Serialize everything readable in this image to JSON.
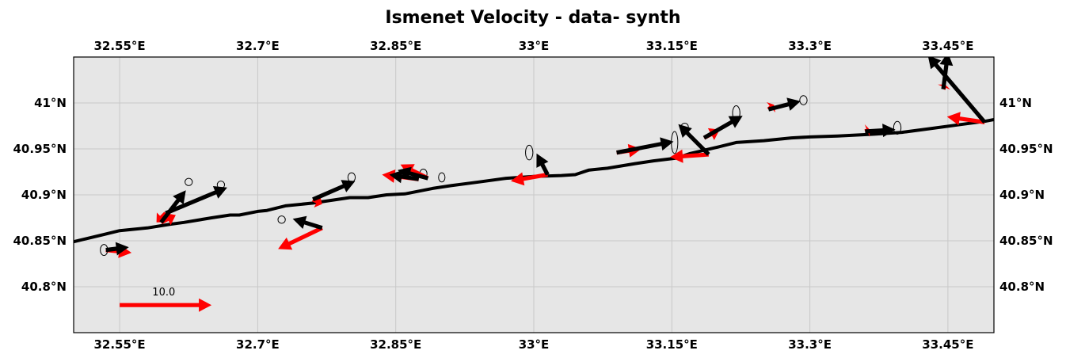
{
  "title": "Ismenet Velocity - data- synth",
  "map": {
    "lon_range": [
      32.5,
      33.5
    ],
    "lat_range": [
      40.75,
      41.05
    ],
    "background": "#e6e6e6",
    "grid": true,
    "lon_ticks": [
      32.55,
      32.7,
      32.85,
      33.0,
      33.15,
      33.3,
      33.45
    ],
    "lon_tick_labels": [
      "32.55°E",
      "32.7°E",
      "32.85°E",
      "33°E",
      "33.15°E",
      "33.3°E",
      "33.45°E"
    ],
    "lat_ticks": [
      40.8,
      40.85,
      40.9,
      40.95,
      41.0
    ],
    "lat_tick_labels": [
      "40.8°N",
      "40.85°N",
      "40.9°N",
      "40.95°N",
      "41°N"
    ]
  },
  "colors": {
    "data": "#000000",
    "synth": "#ff0000",
    "track": "#000000"
  },
  "track": [
    [
      32.5,
      40.849
    ],
    [
      32.55,
      40.861
    ],
    [
      32.58,
      40.864
    ],
    [
      32.605,
      40.868
    ],
    [
      32.62,
      40.87
    ],
    [
      32.65,
      40.875
    ],
    [
      32.67,
      40.878
    ],
    [
      32.68,
      40.878
    ],
    [
      32.7,
      40.882
    ],
    [
      32.71,
      40.883
    ],
    [
      32.73,
      40.888
    ],
    [
      32.76,
      40.891
    ],
    [
      32.8,
      40.897
    ],
    [
      32.82,
      40.897
    ],
    [
      32.84,
      40.9
    ],
    [
      32.86,
      40.901
    ],
    [
      32.89,
      40.907
    ],
    [
      32.91,
      40.91
    ],
    [
      32.94,
      40.914
    ],
    [
      32.97,
      40.918
    ],
    [
      33.0,
      40.92
    ],
    [
      33.03,
      40.921
    ],
    [
      33.045,
      40.922
    ],
    [
      33.06,
      40.927
    ],
    [
      33.08,
      40.929
    ],
    [
      33.11,
      40.934
    ],
    [
      33.13,
      40.937
    ],
    [
      33.155,
      40.94
    ],
    [
      33.17,
      40.945
    ],
    [
      33.2,
      40.952
    ],
    [
      33.22,
      40.957
    ],
    [
      33.25,
      40.959
    ],
    [
      33.28,
      40.962
    ],
    [
      33.3,
      40.963
    ],
    [
      33.33,
      40.964
    ],
    [
      33.37,
      40.966
    ],
    [
      33.4,
      40.968
    ],
    [
      33.43,
      40.972
    ],
    [
      33.46,
      40.976
    ],
    [
      33.49,
      40.98
    ],
    [
      33.5,
      40.982
    ]
  ],
  "chart_data": {
    "type": "quiver",
    "title": "Ismenet Velocity - data- synth",
    "reference_vector": {
      "lon": 32.55,
      "lat": 40.78,
      "u": 10.0,
      "v": 0.0,
      "label": "10.0"
    },
    "vectors": [
      {
        "lon": 32.535,
        "lat": 40.84,
        "data": [
          2.5,
          0.3
        ],
        "synth": [
          2.8,
          -0.3
        ]
      },
      {
        "lon": 32.595,
        "lat": 40.87,
        "data": [
          2.7,
          3.5
        ],
        "synth": [
          1.6,
          0.8
        ]
      },
      {
        "lon": 32.6,
        "lat": 40.88,
        "data": [
          6.7,
          2.8
        ],
        "synth": [
          -1.0,
          -1.0
        ]
      },
      {
        "lon": 32.76,
        "lat": 40.895,
        "data": [
          4.6,
          2.0
        ],
        "synth": [
          1.0,
          -0.5
        ]
      },
      {
        "lon": 32.77,
        "lat": 40.864,
        "data": [
          -3.2,
          1.0
        ],
        "synth": [
          -4.8,
          -2.3
        ]
      },
      {
        "lon": 32.885,
        "lat": 40.918,
        "data": [
          -3.3,
          0.9
        ],
        "synth": [
          -3.0,
          1.5
        ]
      },
      {
        "lon": 32.875,
        "lat": 40.917,
        "data": [
          -3.2,
          0.5
        ],
        "synth": [
          -4.0,
          0.5
        ]
      },
      {
        "lon": 33.015,
        "lat": 40.922,
        "data": [
          -1.2,
          2.3
        ],
        "synth": [
          -4.0,
          -0.7
        ]
      },
      {
        "lon": 33.09,
        "lat": 40.946,
        "data": [
          6.2,
          1.2
        ],
        "synth": [
          2.7,
          0.4
        ]
      },
      {
        "lon": 33.19,
        "lat": 40.944,
        "data": [
          -3.3,
          3.3
        ],
        "synth": [
          -4.2,
          -0.3
        ]
      },
      {
        "lon": 33.185,
        "lat": 40.962,
        "data": [
          4.2,
          2.4
        ],
        "synth": [
          1.7,
          0.9
        ]
      },
      {
        "lon": 33.255,
        "lat": 40.993,
        "data": [
          3.5,
          0.9
        ],
        "synth": [
          0.6,
          0.5
        ]
      },
      {
        "lon": 33.36,
        "lat": 40.969,
        "data": [
          3.3,
          0.2
        ],
        "synth": [
          0.5,
          0.2
        ]
      },
      {
        "lon": 33.445,
        "lat": 41.015,
        "data": [
          0.5,
          4.0
        ],
        "synth": [
          0.2,
          0.5
        ]
      },
      {
        "lon": 33.49,
        "lat": 40.979,
        "data": [
          -6.2,
          7.3
        ],
        "synth": [
          -4.1,
          0.6
        ]
      }
    ],
    "ellipses": [
      {
        "lon": 32.533,
        "lat": 40.84,
        "w": 0.008,
        "h": 0.012
      },
      {
        "lon": 32.625,
        "lat": 40.914,
        "w": 0.008,
        "h": 0.008
      },
      {
        "lon": 32.66,
        "lat": 40.911,
        "w": 0.008,
        "h": 0.008
      },
      {
        "lon": 32.726,
        "lat": 40.873,
        "w": 0.008,
        "h": 0.008
      },
      {
        "lon": 32.802,
        "lat": 40.919,
        "w": 0.008,
        "h": 0.01
      },
      {
        "lon": 32.88,
        "lat": 40.923,
        "w": 0.008,
        "h": 0.01
      },
      {
        "lon": 32.9,
        "lat": 40.919,
        "w": 0.007,
        "h": 0.01
      },
      {
        "lon": 32.995,
        "lat": 40.946,
        "w": 0.008,
        "h": 0.016
      },
      {
        "lon": 33.153,
        "lat": 40.957,
        "w": 0.007,
        "h": 0.024
      },
      {
        "lon": 33.164,
        "lat": 40.974,
        "w": 0.008,
        "h": 0.008
      },
      {
        "lon": 33.22,
        "lat": 40.989,
        "w": 0.008,
        "h": 0.016
      },
      {
        "lon": 33.293,
        "lat": 41.003,
        "w": 0.008,
        "h": 0.01
      },
      {
        "lon": 33.395,
        "lat": 40.973,
        "w": 0.008,
        "h": 0.014
      }
    ]
  }
}
